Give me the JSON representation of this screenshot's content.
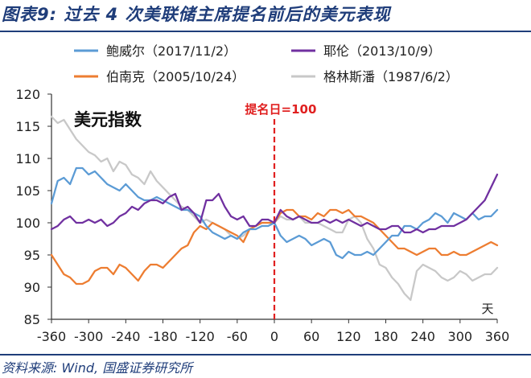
{
  "figure": {
    "title": "图表9:  过去 4 次美联储主席提名前后的美元表现",
    "source": "资料来源: Wind, 国盛证券研究所"
  },
  "chart_data": {
    "type": "line",
    "in_plot_label": "美元指数",
    "annotation": "提名日=100",
    "x_unit_label": "天",
    "xlim": [
      -360,
      360
    ],
    "ylim": [
      85,
      120
    ],
    "x_ticks": [
      -360,
      -300,
      -240,
      -180,
      -120,
      -60,
      0,
      60,
      120,
      180,
      240,
      300,
      360
    ],
    "y_ticks": [
      85,
      90,
      95,
      100,
      105,
      110,
      115,
      120
    ],
    "grid": false,
    "legend_position": "top",
    "colors": {
      "鲍威尔": "#5b9bd5",
      "耶伦": "#7030a0",
      "伯南克": "#ed7d31",
      "格林斯潘": "#c8c8c8",
      "annotation": "#e02020",
      "axis": "#333333",
      "title": "#1f3d7a"
    },
    "series": [
      {
        "name": "鲍威尔（2017/11/2）",
        "x": [
          -360,
          -350,
          -340,
          -330,
          -320,
          -310,
          -300,
          -290,
          -280,
          -270,
          -260,
          -250,
          -240,
          -230,
          -220,
          -210,
          -200,
          -190,
          -180,
          -170,
          -160,
          -150,
          -140,
          -130,
          -120,
          -110,
          -100,
          -90,
          -80,
          -70,
          -60,
          -50,
          -40,
          -30,
          -20,
          -10,
          0,
          10,
          20,
          30,
          40,
          50,
          60,
          70,
          80,
          90,
          100,
          110,
          120,
          130,
          140,
          150,
          160,
          170,
          180,
          190,
          200,
          210,
          220,
          230,
          240,
          250,
          260,
          270,
          280,
          290,
          300,
          310,
          320,
          330,
          340,
          350,
          360
        ],
        "y": [
          103,
          106.5,
          107,
          106,
          108.5,
          108.5,
          107.5,
          108,
          107,
          106,
          105.5,
          105,
          106,
          105,
          104,
          103.5,
          103.5,
          104,
          103.5,
          103,
          102.5,
          102,
          102,
          101.5,
          101,
          99.5,
          98.5,
          98,
          97.5,
          98,
          97.5,
          98.5,
          99,
          99,
          99.5,
          99.5,
          100,
          98,
          97,
          97.5,
          98,
          97.5,
          96.5,
          97,
          97.5,
          97,
          95,
          94.5,
          95.5,
          95,
          95,
          95.5,
          95,
          96,
          97,
          98,
          98,
          99.5,
          99.5,
          99,
          100,
          100.5,
          101.5,
          101,
          100,
          101.5,
          101,
          100.5,
          101.5,
          100.5,
          101,
          101,
          102
        ]
      },
      {
        "name": "耶伦（2013/10/9）",
        "x": [
          -360,
          -350,
          -340,
          -330,
          -320,
          -310,
          -300,
          -290,
          -280,
          -270,
          -260,
          -250,
          -240,
          -230,
          -220,
          -210,
          -200,
          -190,
          -180,
          -170,
          -160,
          -150,
          -140,
          -130,
          -120,
          -110,
          -100,
          -90,
          -80,
          -70,
          -60,
          -50,
          -40,
          -30,
          -20,
          -10,
          0,
          10,
          20,
          30,
          40,
          50,
          60,
          70,
          80,
          90,
          100,
          110,
          120,
          130,
          140,
          150,
          160,
          170,
          180,
          190,
          200,
          210,
          220,
          230,
          240,
          250,
          260,
          270,
          280,
          290,
          300,
          310,
          320,
          330,
          340,
          350,
          360
        ],
        "y": [
          99,
          99.5,
          100.5,
          101,
          100,
          100,
          100.5,
          100,
          100.5,
          99.5,
          100,
          101,
          101.5,
          102.5,
          102,
          103,
          103.5,
          103.5,
          103,
          104,
          104.5,
          102,
          102.5,
          101.5,
          100,
          103.5,
          103.5,
          104.5,
          102.5,
          101,
          100.5,
          101,
          99.5,
          99.5,
          100.5,
          100.5,
          100,
          102,
          101,
          100.5,
          101,
          100.5,
          100,
          100,
          100.5,
          100,
          100.5,
          100,
          100.5,
          100,
          99.5,
          100,
          99.5,
          99,
          99,
          99.5,
          99.5,
          98.5,
          98.5,
          99,
          98.5,
          99,
          99,
          99.5,
          99.5,
          99.5,
          100,
          100.5,
          101.5,
          102.5,
          103.5,
          105.5,
          107.5
        ]
      },
      {
        "name": "伯南克（2005/10/24）",
        "x": [
          -360,
          -350,
          -340,
          -330,
          -320,
          -310,
          -300,
          -290,
          -280,
          -270,
          -260,
          -250,
          -240,
          -230,
          -220,
          -210,
          -200,
          -190,
          -180,
          -170,
          -160,
          -150,
          -140,
          -130,
          -120,
          -110,
          -100,
          -90,
          -80,
          -70,
          -60,
          -50,
          -40,
          -30,
          -20,
          -10,
          0,
          10,
          20,
          30,
          40,
          50,
          60,
          70,
          80,
          90,
          100,
          110,
          120,
          130,
          140,
          150,
          160,
          170,
          180,
          190,
          200,
          210,
          220,
          230,
          240,
          250,
          260,
          270,
          280,
          290,
          300,
          310,
          320,
          330,
          340,
          350,
          360
        ],
        "y": [
          95,
          93.5,
          92,
          91.5,
          90.5,
          90.5,
          91,
          92.5,
          93,
          93,
          92,
          93.5,
          93,
          92,
          91,
          92.5,
          93.5,
          93.5,
          93,
          94,
          95,
          96,
          96.5,
          98.5,
          99.5,
          99,
          100,
          99.5,
          99,
          98.5,
          98,
          97,
          99,
          99.5,
          100,
          100,
          100,
          101.5,
          102,
          102,
          101,
          101,
          100.5,
          101.5,
          101,
          102,
          102,
          101.5,
          102,
          101,
          101,
          100.5,
          100,
          99,
          98,
          97,
          96,
          96,
          95.5,
          95,
          95.5,
          96,
          96,
          95,
          95,
          95.5,
          95,
          95,
          95.5,
          96,
          96.5,
          97,
          96.5
        ]
      },
      {
        "name": "格林斯潘（1987/6/2）",
        "x": [
          -360,
          -350,
          -340,
          -330,
          -320,
          -310,
          -300,
          -290,
          -280,
          -270,
          -260,
          -250,
          -240,
          -230,
          -220,
          -210,
          -200,
          -190,
          -180,
          -170,
          -160,
          -150,
          -140,
          -130,
          -120,
          -110,
          -100,
          -90,
          -80,
          -70,
          -60,
          -50,
          -40,
          -30,
          -20,
          -10,
          0,
          10,
          20,
          30,
          40,
          50,
          60,
          70,
          80,
          90,
          100,
          110,
          120,
          130,
          140,
          150,
          160,
          170,
          180,
          190,
          200,
          210,
          220,
          230,
          240,
          250,
          260,
          270,
          280,
          290,
          300,
          310,
          320,
          330,
          340,
          350,
          360
        ],
        "y": [
          116.5,
          115.5,
          116,
          114.5,
          113,
          112,
          111,
          110.5,
          109.5,
          110,
          108,
          109.5,
          109,
          107.5,
          107,
          106,
          108,
          106.5,
          105.5,
          104.5,
          103.5,
          102.5,
          102,
          101,
          100,
          100.5,
          100,
          99.5,
          99,
          98,
          97.5,
          98,
          99,
          99.5,
          100,
          100,
          100,
          101,
          100.5,
          100.5,
          101,
          100,
          100,
          100,
          99.5,
          99,
          98.5,
          98.5,
          100.5,
          101,
          100,
          97.5,
          96,
          93.5,
          93,
          91.5,
          90.5,
          89,
          88,
          92.5,
          93.5,
          93,
          92.5,
          91.5,
          91,
          91.5,
          92.5,
          92,
          91,
          91.5,
          92,
          92,
          93
        ]
      }
    ]
  }
}
